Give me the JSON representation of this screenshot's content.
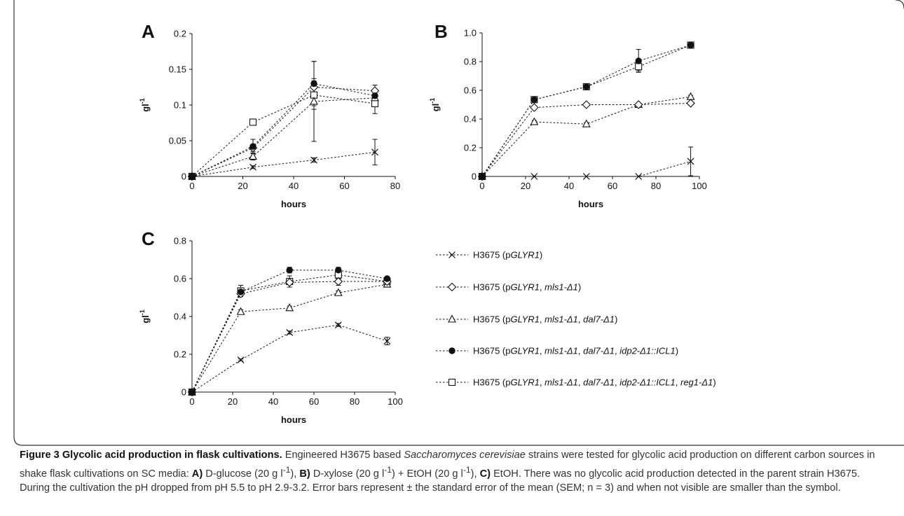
{
  "figure": {
    "caption_title": "Figure 3 Glycolic acid production in flask cultivations.",
    "caption_p1": " Engineered H3675 based ",
    "caption_species": "Saccharomyces cerevisiae",
    "caption_p2": " strains were tested for glycolic acid production on different carbon sources in shake flask cultivations on SC media: ",
    "caption_a": "A)",
    "caption_a_text": " D-glucose (20 g l",
    "caption_b": "B)",
    "caption_b_text": " D-xylose (20 g l",
    "caption_b_text2": ") + EtOH (20 g l",
    "caption_c": "C)",
    "caption_c_text": " EtOH. There was no glycolic acid production detected in the parent strain H3675. During the cultivation the pH dropped from pH 5.5 to pH 2.9-3.2. Error bars represent ± the standard error of the mean (SEM; n = 3) and when not visible are smaller than the symbol.",
    "superscript": "-1"
  },
  "legend": [
    {
      "marker": "x-marker",
      "prefix": "H3675 (p",
      "parts": [
        [
          "GLYR1",
          true
        ],
        [
          ")",
          false
        ]
      ]
    },
    {
      "marker": "diamond-open",
      "prefix": "H3675 (p",
      "parts": [
        [
          "GLYR1",
          true
        ],
        [
          ", ",
          false
        ],
        [
          "mls1-Δ1",
          true
        ],
        [
          ")",
          false
        ]
      ]
    },
    {
      "marker": "triangle-open",
      "prefix": "H3675 (p",
      "parts": [
        [
          "GLYR1",
          true
        ],
        [
          ", ",
          false
        ],
        [
          "mls1-Δ1",
          true
        ],
        [
          ", ",
          false
        ],
        [
          "dal7-Δ1",
          true
        ],
        [
          ")",
          false
        ]
      ]
    },
    {
      "marker": "circle-filled",
      "prefix": "H3675 (p",
      "parts": [
        [
          "GLYR1",
          true
        ],
        [
          ", ",
          false
        ],
        [
          "mls1-Δ1",
          true
        ],
        [
          ", ",
          false
        ],
        [
          "dal7-Δ1",
          true
        ],
        [
          ", ",
          false
        ],
        [
          "idp2-Δ1::ICL1",
          true
        ],
        [
          ")",
          false
        ]
      ]
    },
    {
      "marker": "square-open",
      "prefix": "H3675 (p",
      "parts": [
        [
          "GLYR1",
          true
        ],
        [
          ", ",
          false
        ],
        [
          "mls1-Δ1",
          true
        ],
        [
          ", ",
          false
        ],
        [
          "dal7-Δ1",
          true
        ],
        [
          ", ",
          false
        ],
        [
          "idp2-Δ1::ICL1",
          true
        ],
        [
          ", ",
          false
        ],
        [
          "reg1-Δ1",
          true
        ],
        [
          ")",
          false
        ]
      ]
    }
  ],
  "chart_data": [
    {
      "panel": "A",
      "type": "line",
      "xlabel": "hours",
      "ylabel": "gl-1",
      "xlim": [
        0,
        80
      ],
      "ylim": [
        0,
        0.2
      ],
      "xticks": [
        "0",
        "20",
        "40",
        "60",
        "80"
      ],
      "yticks": [
        "0",
        "0.05",
        "0.1",
        "0.15",
        "0.2"
      ],
      "x": [
        0,
        24,
        48,
        72
      ],
      "series": [
        {
          "marker": "x-marker",
          "values": [
            0,
            0.013,
            0.023,
            0.034
          ],
          "errors": [
            0,
            0.002,
            0.003,
            0.018
          ]
        },
        {
          "marker": "diamond-open",
          "values": [
            0,
            0.04,
            0.125,
            0.12
          ],
          "errors": [
            0,
            0.005,
            0.012,
            0.008
          ]
        },
        {
          "marker": "triangle-open",
          "values": [
            0,
            0.028,
            0.105,
            0.11
          ],
          "errors": [
            0,
            0.005,
            0.056,
            0.006
          ]
        },
        {
          "marker": "circle-filled",
          "values": [
            0,
            0.042,
            0.13,
            0.113
          ],
          "errors": [
            0,
            0.01,
            0.031,
            0.008
          ]
        },
        {
          "marker": "square-open",
          "values": [
            0,
            0.076,
            0.114,
            0.102
          ],
          "errors": [
            0,
            0.003,
            0.02,
            0.014
          ]
        }
      ]
    },
    {
      "panel": "B",
      "type": "line",
      "xlabel": "hours",
      "ylabel": "gl-1",
      "xlim": [
        0,
        100
      ],
      "ylim": [
        0,
        1.0
      ],
      "xticks": [
        "0",
        "20",
        "40",
        "60",
        "80",
        "100"
      ],
      "yticks": [
        "0",
        "0.2",
        "0.4",
        "0.6",
        "0.8",
        "1.0"
      ],
      "x": [
        0,
        24,
        48,
        72,
        96
      ],
      "series": [
        {
          "marker": "x-marker",
          "values": [
            0,
            0,
            0,
            0,
            0.105
          ],
          "errors": [
            0,
            0,
            0,
            0,
            0.1
          ]
        },
        {
          "marker": "diamond-open",
          "values": [
            0,
            0.48,
            0.5,
            0.5,
            0.51
          ],
          "errors": [
            0,
            0.01,
            0.01,
            0.01,
            0.01
          ]
        },
        {
          "marker": "triangle-open",
          "values": [
            0,
            0.38,
            0.365,
            0.5,
            0.555
          ],
          "errors": [
            0,
            0.01,
            0.01,
            0.01,
            0.01
          ]
        },
        {
          "marker": "circle-filled",
          "values": [
            0,
            0.535,
            0.625,
            0.805,
            0.915
          ],
          "errors": [
            0,
            0.01,
            0.01,
            0.08,
            0.02
          ]
        },
        {
          "marker": "square-open",
          "values": [
            0,
            0.535,
            0.625,
            0.765,
            0.915
          ],
          "errors": [
            0,
            0.01,
            0.01,
            0.03,
            0.02
          ]
        }
      ]
    },
    {
      "panel": "C",
      "type": "line",
      "xlabel": "hours",
      "ylabel": "gl-1",
      "xlim": [
        0,
        100
      ],
      "ylim": [
        0,
        0.8
      ],
      "xticks": [
        "0",
        "20",
        "40",
        "60",
        "80",
        "100"
      ],
      "yticks": [
        "0",
        "0.2",
        "0.4",
        "0.6",
        "0.8"
      ],
      "x": [
        0,
        24,
        48,
        72,
        96
      ],
      "series": [
        {
          "marker": "x-marker",
          "values": [
            0,
            0.17,
            0.315,
            0.355,
            0.27
          ],
          "errors": [
            0,
            0.005,
            0.008,
            0.008,
            0.02
          ]
        },
        {
          "marker": "diamond-open",
          "values": [
            0,
            0.52,
            0.58,
            0.585,
            0.585
          ],
          "errors": [
            0,
            0.01,
            0.01,
            0.02,
            0.01
          ]
        },
        {
          "marker": "triangle-open",
          "values": [
            0,
            0.425,
            0.445,
            0.525,
            0.57
          ],
          "errors": [
            0,
            0.01,
            0.01,
            0.01,
            0.015
          ]
        },
        {
          "marker": "circle-filled",
          "values": [
            0,
            0.53,
            0.645,
            0.645,
            0.6
          ],
          "errors": [
            0,
            0.02,
            0.015,
            0.015,
            0.01
          ]
        },
        {
          "marker": "square-open",
          "values": [
            0,
            0.535,
            0.585,
            0.62,
            0.585
          ],
          "errors": [
            0,
            0.03,
            0.03,
            0.02,
            0.02
          ]
        }
      ]
    }
  ]
}
